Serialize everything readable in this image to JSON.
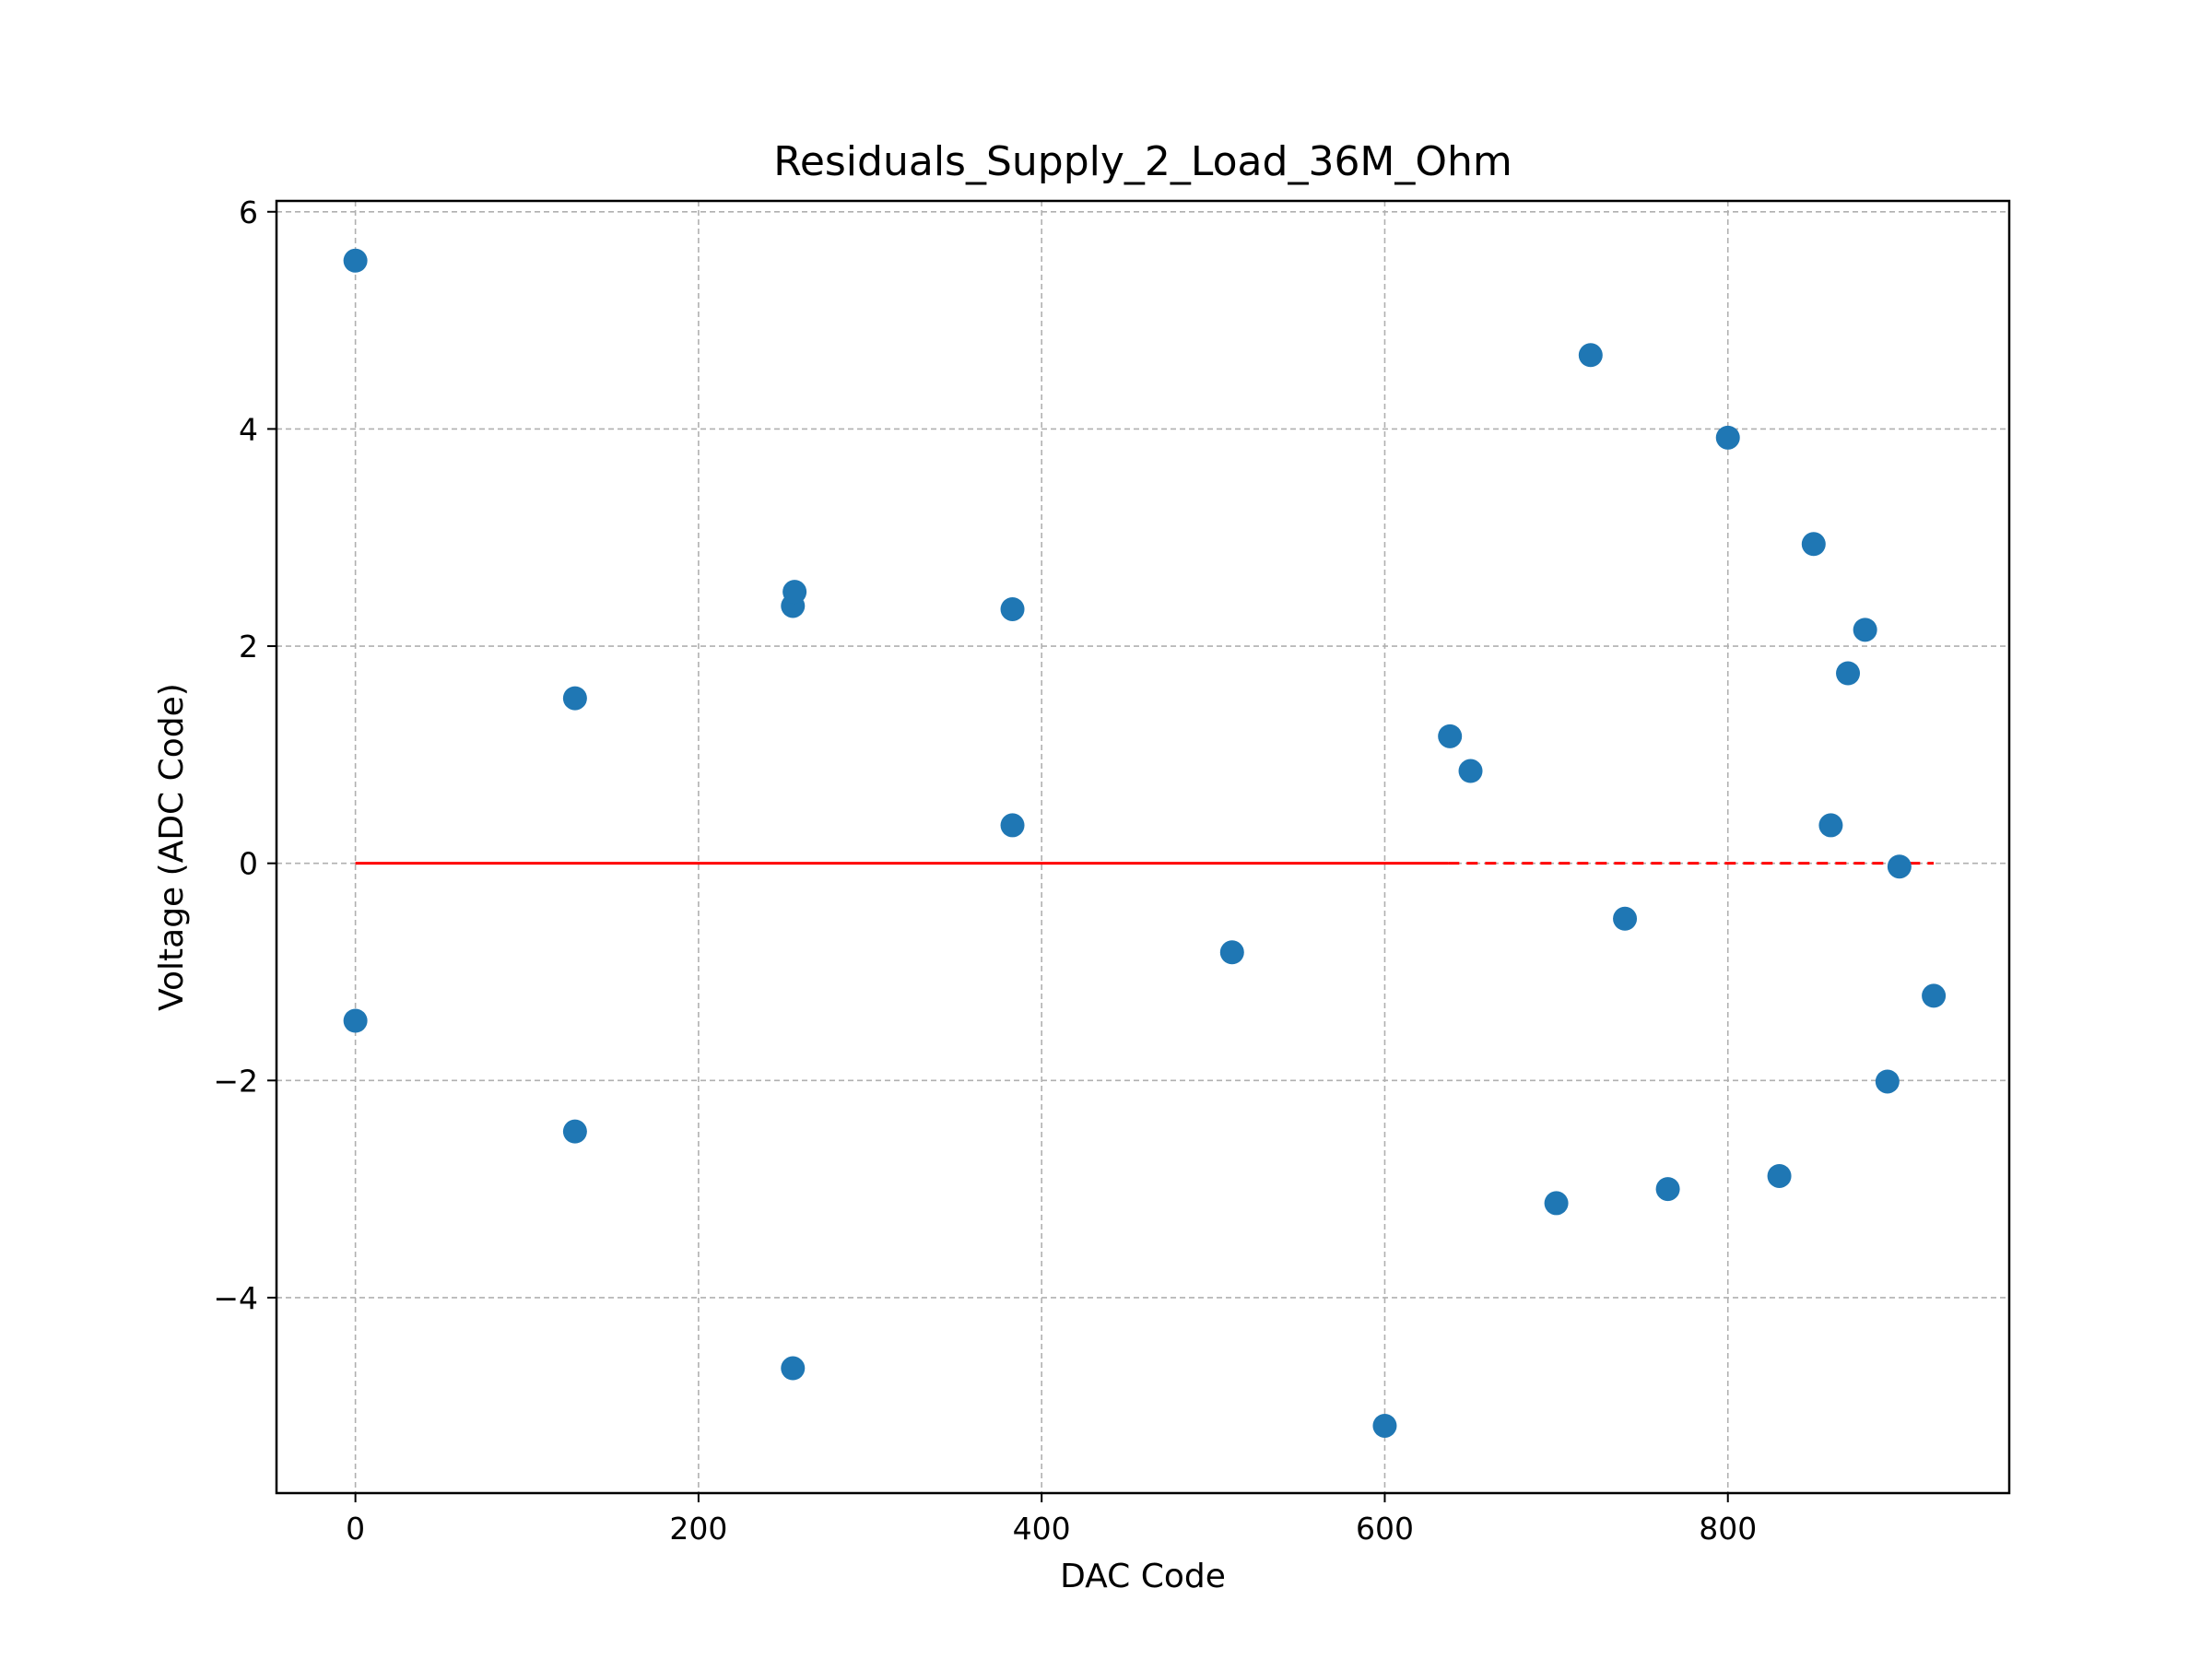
{
  "chart_data": {
    "type": "scatter",
    "title": "Residuals_Supply_2_Load_36M_Ohm",
    "xlabel": "DAC Code",
    "ylabel": "Voltage (ADC Code)",
    "xlim": [
      -46,
      964
    ],
    "ylim": [
      -5.8,
      6.1
    ],
    "xticks": [
      0,
      200,
      400,
      600,
      800
    ],
    "xtick_labels": [
      "0",
      "200",
      "400",
      "600",
      "800"
    ],
    "yticks": [
      -4,
      -2,
      0,
      2,
      4,
      6
    ],
    "ytick_labels": [
      "−4",
      "−2",
      "0",
      "2",
      "4",
      "6"
    ],
    "grid": true,
    "colors": {
      "points": "#1f77b4",
      "zero_line": "#ff0000",
      "grid": "#b0b0b0"
    },
    "points": {
      "x": [
        0,
        0,
        128,
        128,
        255,
        256,
        255,
        383,
        383,
        511,
        600,
        638,
        650,
        700,
        720,
        740,
        765,
        800,
        830,
        850,
        860,
        870,
        880,
        893,
        900,
        920
      ],
      "y": [
        5.55,
        -1.45,
        1.52,
        -2.47,
        2.37,
        2.5,
        -4.65,
        2.34,
        0.35,
        -0.82,
        -5.18,
        1.17,
        0.85,
        -3.13,
        4.68,
        -0.51,
        -3.0,
        3.92,
        -2.88,
        2.94,
        0.35,
        1.75,
        2.15,
        -2.01,
        -0.03,
        -1.22
      ]
    },
    "zero_line": {
      "y": 0,
      "solid_range": [
        0,
        637
      ],
      "dashed_range": [
        637,
        920
      ]
    }
  }
}
